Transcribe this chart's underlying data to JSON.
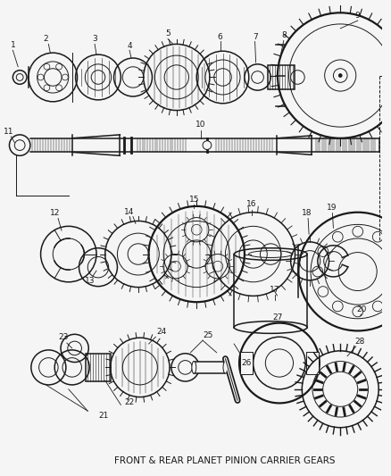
{
  "title": "FRONT & REAR PLANET PINION CARRIER GEARS",
  "bg_color": "#f5f5f5",
  "line_color": "#1a1a1a",
  "label_color": "#1a1a1a"
}
